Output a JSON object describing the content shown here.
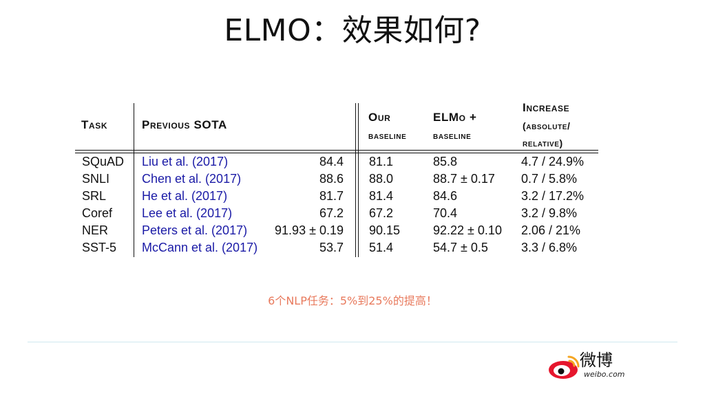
{
  "slide": {
    "title": "ELMO：效果如何?",
    "note": "6个NLP任务：5%到25%的提高！"
  },
  "table": {
    "headers": {
      "task": "Task",
      "previous_sota": "Previous SOTA",
      "our_baseline_line1": "Our",
      "our_baseline_line2": "baseline",
      "elmo_line1": "ELMo +",
      "elmo_line2": "baseline",
      "increase_line1": "Increase",
      "increase_line2": "(absolute/",
      "increase_line3": "relative)"
    },
    "rows": [
      {
        "task": "SQuAD",
        "prev_ref": "Liu et al. (2017)",
        "prev_score": "84.4",
        "baseline": "81.1",
        "elmo": "85.8",
        "increase": "4.7 / 24.9%"
      },
      {
        "task": "SNLI",
        "prev_ref": "Chen et al. (2017)",
        "prev_score": "88.6",
        "baseline": "88.0",
        "elmo": "88.7 ± 0.17",
        "increase": "0.7 / 5.8%"
      },
      {
        "task": "SRL",
        "prev_ref": "He et al. (2017)",
        "prev_score": "81.7",
        "baseline": "81.4",
        "elmo": "84.6",
        "increase": "3.2 / 17.2%"
      },
      {
        "task": "Coref",
        "prev_ref": "Lee et al. (2017)",
        "prev_score": "67.2",
        "baseline": "67.2",
        "elmo": "70.4",
        "increase": "3.2 / 9.8%"
      },
      {
        "task": "NER",
        "prev_ref": "Peters et al. (2017)",
        "prev_score": "91.93 ± 0.19",
        "baseline": "90.15",
        "elmo": "92.22 ± 0.10",
        "increase": "2.06 / 21%"
      },
      {
        "task": "SST-5",
        "prev_ref": "McCann et al. (2017)",
        "prev_score": "53.7",
        "baseline": "51.4",
        "elmo": "54.7 ± 0.5",
        "increase": "3.3 / 6.8%"
      }
    ]
  },
  "brand": {
    "logo_text": "微博",
    "url": "weibo.com",
    "logo_icon": "weibo-eye-icon",
    "red": "#e6162d",
    "orange": "#f5a623"
  }
}
